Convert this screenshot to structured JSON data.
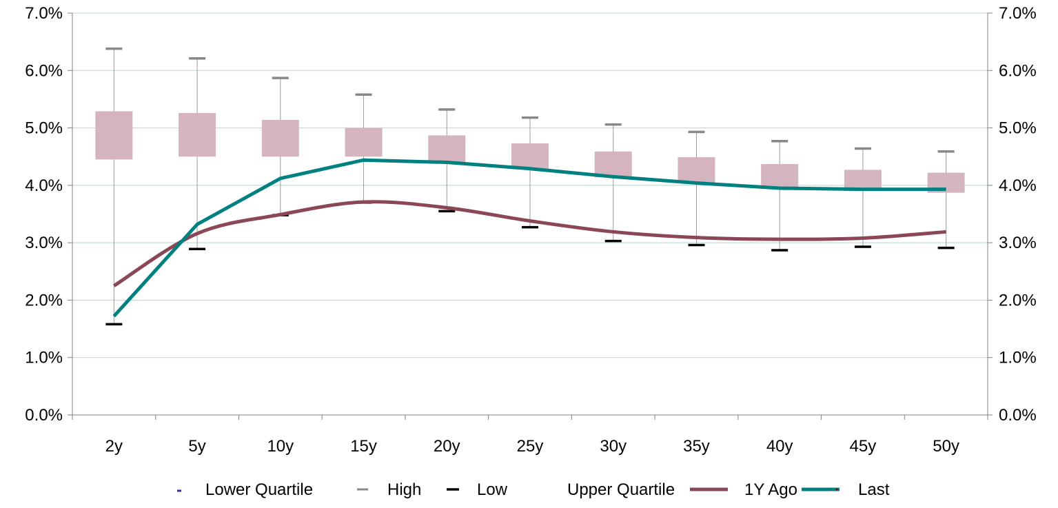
{
  "chart_data": {
    "type": "box-line",
    "categories": [
      "2y",
      "5y",
      "10y",
      "15y",
      "20y",
      "25y",
      "30y",
      "35y",
      "40y",
      "45y",
      "50y"
    ],
    "y_axis": {
      "min": 0,
      "max": 7,
      "step": 1,
      "tick_labels": [
        "0.0%",
        "1.0%",
        "2.0%",
        "3.0%",
        "4.0%",
        "5.0%",
        "6.0%",
        "7.0%"
      ],
      "secondary_tick_labels": [
        "0.0%",
        "1.0%",
        "2.0%",
        "3.0%",
        "4.0%",
        "5.0%",
        "6.0%",
        "7.0%"
      ]
    },
    "grid": true,
    "boxes": {
      "lower_quartile": [
        4.45,
        4.5,
        4.5,
        4.5,
        4.4,
        4.28,
        4.14,
        4.04,
        3.97,
        3.9,
        3.87
      ],
      "upper_quartile": [
        5.29,
        5.26,
        5.14,
        5.0,
        4.87,
        4.73,
        4.59,
        4.49,
        4.37,
        4.27,
        4.22
      ],
      "high": [
        6.38,
        6.21,
        5.87,
        5.58,
        5.32,
        5.18,
        5.06,
        4.93,
        4.77,
        4.64,
        4.59
      ],
      "low": [
        1.58,
        2.89,
        3.48,
        3.7,
        3.55,
        3.27,
        3.03,
        2.96,
        2.87,
        2.93,
        2.91
      ]
    },
    "series": [
      {
        "name": "1Y Ago",
        "color": "#8b4755",
        "values": [
          2.25,
          3.16,
          3.49,
          3.71,
          3.61,
          3.38,
          3.19,
          3.09,
          3.06,
          3.08,
          3.19
        ]
      },
      {
        "name": "Last",
        "color": "#008080",
        "values": [
          1.72,
          3.32,
          4.12,
          4.44,
          4.4,
          4.29,
          4.15,
          4.04,
          3.95,
          3.93,
          3.93
        ]
      }
    ],
    "legend": {
      "placement": "bottom",
      "items": [
        {
          "label": "Lower Quartile",
          "marker": "dash-blue",
          "color": "#3333aa"
        },
        {
          "label": "High",
          "marker": "dash-gray",
          "color": "#888888"
        },
        {
          "label": "Low",
          "marker": "dash-black",
          "color": "#000000"
        },
        {
          "label": "Upper Quartile",
          "marker": "none"
        },
        {
          "label": "1Y Ago",
          "marker": "line",
          "color": "#8b4755"
        },
        {
          "label": "Last",
          "marker": "line",
          "color": "#008080"
        }
      ]
    },
    "colors": {
      "box_fill": "#d4b5bf",
      "whisker": "#999999",
      "high_cap": "#888888",
      "low_cap": "#000000",
      "grid": "#b9d3d3",
      "axis": "#808080"
    }
  }
}
